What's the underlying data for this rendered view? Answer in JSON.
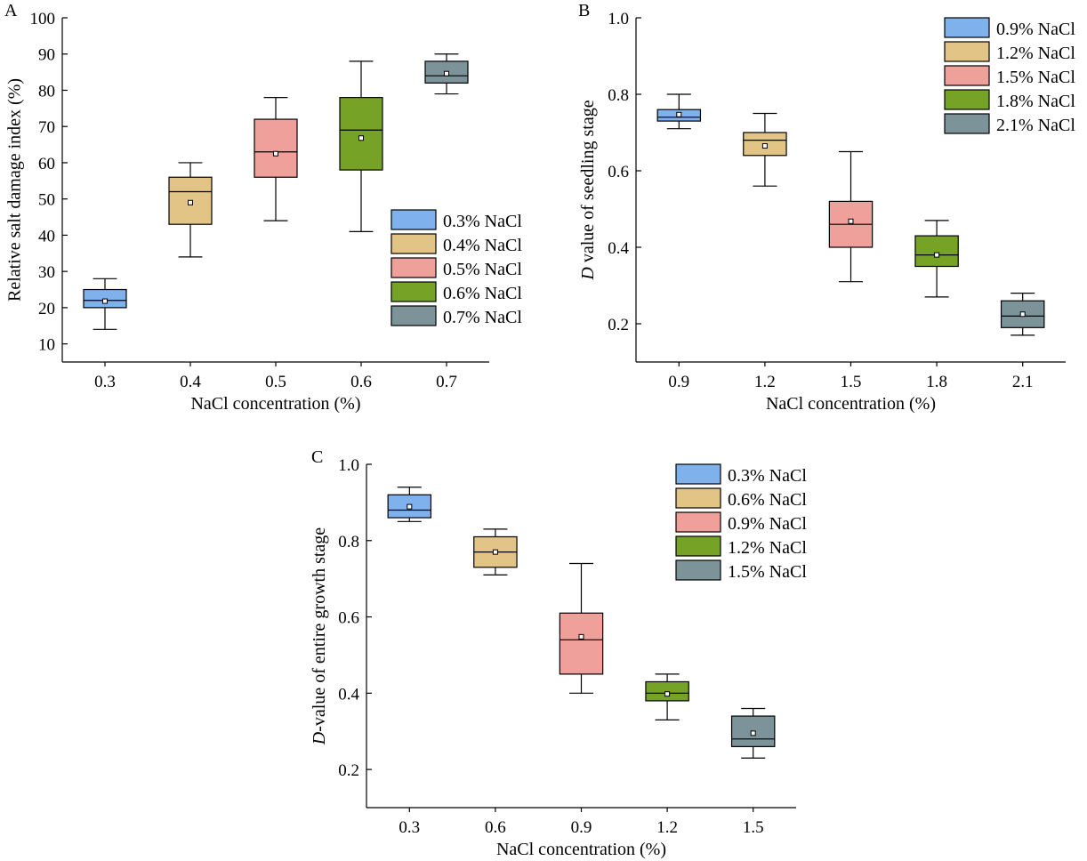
{
  "colors": [
    "#7FB2EC",
    "#E2C487",
    "#F0A09A",
    "#76A226",
    "#7B9399"
  ],
  "chart_data": [
    {
      "type": "box",
      "panel_label": "A",
      "xlabel": "NaCl concentration (%)",
      "ylabel": "Relative salt damage index (%)",
      "ylim": [
        5,
        100
      ],
      "yticks": [
        "10",
        "20",
        "30",
        "40",
        "50",
        "60",
        "70",
        "80",
        "90",
        "100"
      ],
      "categories": [
        "0.3",
        "0.4",
        "0.5",
        "0.6",
        "0.7"
      ],
      "legend": [
        "0.3% NaCl",
        "0.4% NaCl",
        "0.5% NaCl",
        "0.6% NaCl",
        "0.7% NaCl"
      ],
      "legend_position": "lower-right",
      "boxes": [
        {
          "min": 14,
          "q1": 20,
          "median": 22,
          "q3": 25,
          "max": 28,
          "mean": 21.8
        },
        {
          "min": 34,
          "q1": 43,
          "median": 52,
          "q3": 56,
          "max": 60,
          "mean": 49
        },
        {
          "min": 44,
          "q1": 56,
          "median": 63,
          "q3": 72,
          "max": 78,
          "mean": 62.5
        },
        {
          "min": 41,
          "q1": 58,
          "median": 69,
          "q3": 78,
          "max": 88,
          "mean": 66.8
        },
        {
          "min": 79,
          "q1": 82,
          "median": 84,
          "q3": 88,
          "max": 90,
          "mean": 84.6
        }
      ]
    },
    {
      "type": "box",
      "panel_label": "B",
      "xlabel": "NaCl concentration (%)",
      "ylabel": "D value of seedling stage",
      "ylim": [
        0.1,
        1.0
      ],
      "yticks": [
        "0.2",
        "0.4",
        "0.6",
        "0.8",
        "1.0"
      ],
      "categories": [
        "0.9",
        "1.2",
        "1.5",
        "1.8",
        "2.1"
      ],
      "legend": [
        "0.9% NaCl",
        "1.2% NaCl",
        "1.5% NaCl",
        "1.8% NaCl",
        "2.1% NaCl"
      ],
      "legend_position": "top-right",
      "boxes": [
        {
          "min": 0.71,
          "q1": 0.73,
          "median": 0.74,
          "q3": 0.76,
          "max": 0.8,
          "mean": 0.747
        },
        {
          "min": 0.56,
          "q1": 0.64,
          "median": 0.68,
          "q3": 0.7,
          "max": 0.75,
          "mean": 0.665
        },
        {
          "min": 0.31,
          "q1": 0.4,
          "median": 0.46,
          "q3": 0.52,
          "max": 0.65,
          "mean": 0.468
        },
        {
          "min": 0.27,
          "q1": 0.35,
          "median": 0.38,
          "q3": 0.43,
          "max": 0.47,
          "mean": 0.38
        },
        {
          "min": 0.17,
          "q1": 0.19,
          "median": 0.22,
          "q3": 0.26,
          "max": 0.28,
          "mean": 0.225
        }
      ]
    },
    {
      "type": "box",
      "panel_label": "C",
      "xlabel": "NaCl concentration (%)",
      "ylabel": "D-value of entire growth stage",
      "ylim": [
        0.1,
        1.0
      ],
      "yticks": [
        "0.2",
        "0.4",
        "0.6",
        "0.8",
        "1.0"
      ],
      "categories": [
        "0.3",
        "0.6",
        "0.9",
        "1.2",
        "1.5"
      ],
      "legend": [
        "0.3% NaCl",
        "0.6% NaCl",
        "0.9% NaCl",
        "1.2% NaCl",
        "1.5% NaCl"
      ],
      "legend_position": "top-right",
      "boxes": [
        {
          "min": 0.85,
          "q1": 0.86,
          "median": 0.88,
          "q3": 0.92,
          "max": 0.94,
          "mean": 0.889
        },
        {
          "min": 0.71,
          "q1": 0.73,
          "median": 0.77,
          "q3": 0.81,
          "max": 0.83,
          "mean": 0.77
        },
        {
          "min": 0.4,
          "q1": 0.45,
          "median": 0.54,
          "q3": 0.61,
          "max": 0.74,
          "mean": 0.548
        },
        {
          "min": 0.33,
          "q1": 0.38,
          "median": 0.4,
          "q3": 0.43,
          "max": 0.45,
          "mean": 0.398
        },
        {
          "min": 0.23,
          "q1": 0.26,
          "median": 0.28,
          "q3": 0.34,
          "max": 0.36,
          "mean": 0.295
        }
      ]
    }
  ]
}
